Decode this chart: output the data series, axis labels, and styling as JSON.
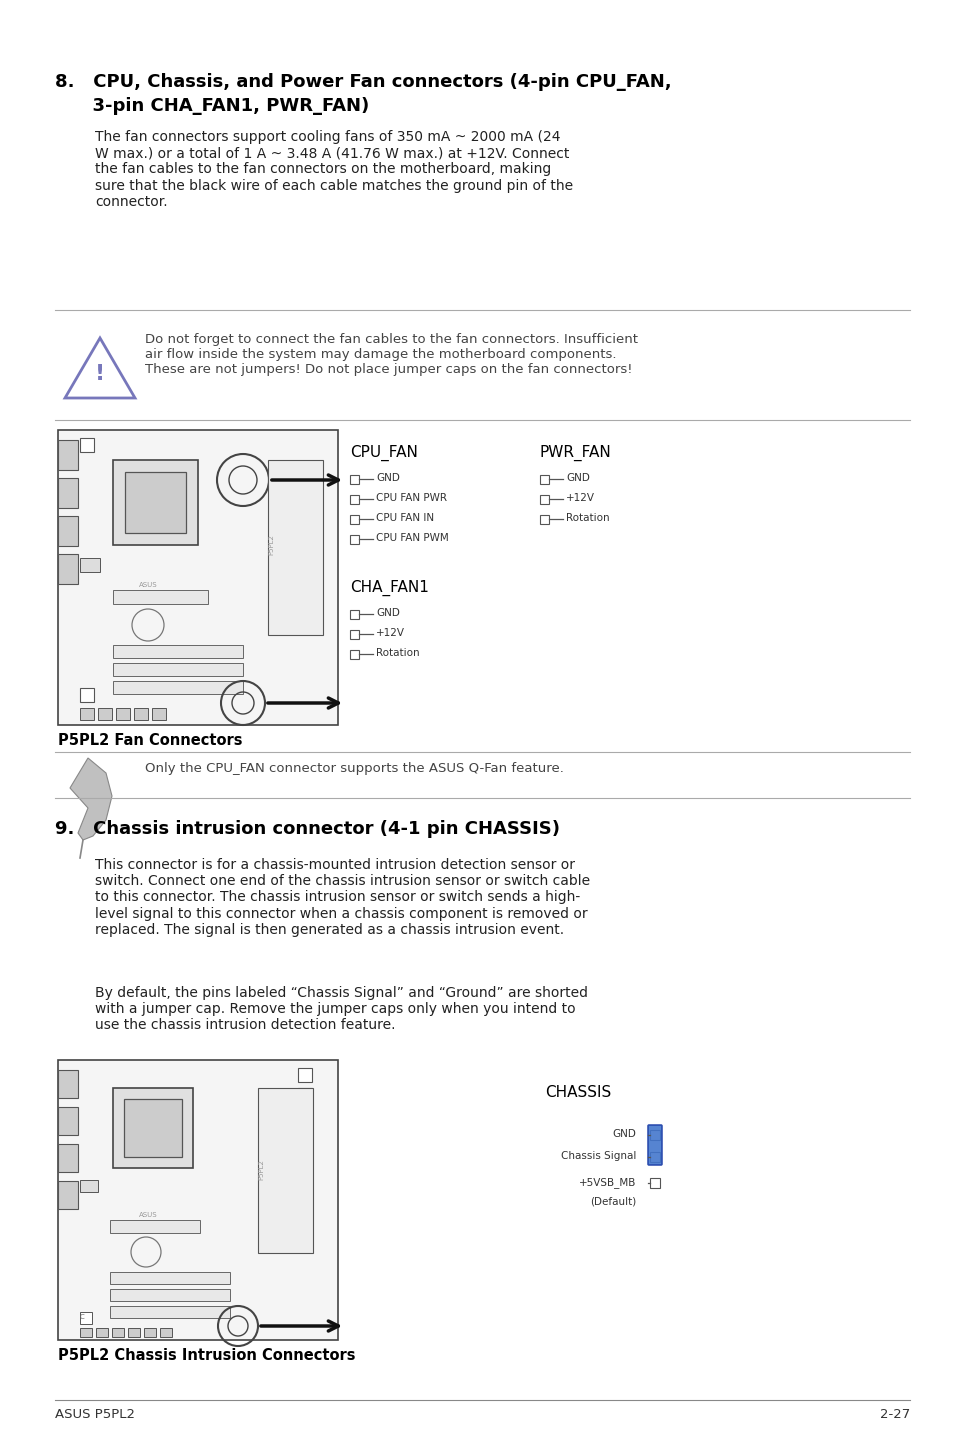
{
  "bg_color": "#ffffff",
  "section8_heading_line1": "8.   CPU, Chassis, and Power Fan connectors (4-pin CPU_FAN,",
  "section8_heading_line2": "      3-pin CHA_FAN1, PWR_FAN)",
  "section8_body": "The fan connectors support cooling fans of 350 mA ~ 2000 mA (24\nW max.) or a total of 1 A ~ 3.48 A (41.76 W max.) at +12V. Connect\nthe fan cables to the fan connectors on the motherboard, making\nsure that the black wire of each cable matches the ground pin of the\nconnector.",
  "warning_text": "Do not forget to connect the fan cables to the fan connectors. Insufficient\nair flow inside the system may damage the motherboard components.\nThese are not jumpers! Do not place jumper caps on the fan connectors!",
  "cpu_fan_label": "CPU_FAN",
  "pwr_fan_label": "PWR_FAN",
  "cpu_fan_pins": [
    "GND",
    "CPU FAN PWR",
    "CPU FAN IN",
    "CPU FAN PWM"
  ],
  "pwr_fan_pins": [
    "GND",
    "+12V",
    "Rotation"
  ],
  "cha_fan1_label": "CHA_FAN1",
  "cha_fan1_pins": [
    "GND",
    "+12V",
    "Rotation"
  ],
  "fan_caption": "P5PL2 Fan Connectors",
  "note_text": "Only the CPU_FAN connector supports the ASUS Q-Fan feature.",
  "section9_heading": "9.   Chassis intrusion connector (4-1 pin CHASSIS)",
  "section9_body1": "This connector is for a chassis-mounted intrusion detection sensor or\nswitch. Connect one end of the chassis intrusion sensor or switch cable\nto this connector. The chassis intrusion sensor or switch sends a high-\nlevel signal to this connector when a chassis component is removed or\nreplaced. The signal is then generated as a chassis intrusion event.",
  "section9_body2": "By default, the pins labeled “Chassis Signal” and “Ground” are shorted\nwith a jumper cap. Remove the jumper caps only when you intend to\nuse the chassis intrusion detection feature.",
  "chassis_label": "CHASSIS",
  "chassis_pins_left": [
    "GND",
    "Chassis Signal",
    "+5VSB_MB"
  ],
  "chassis_default": "(Default)",
  "chassis_caption": "P5PL2 Chassis Intrusion Connectors",
  "footer_left": "ASUS P5PL2",
  "footer_right": "2-27"
}
